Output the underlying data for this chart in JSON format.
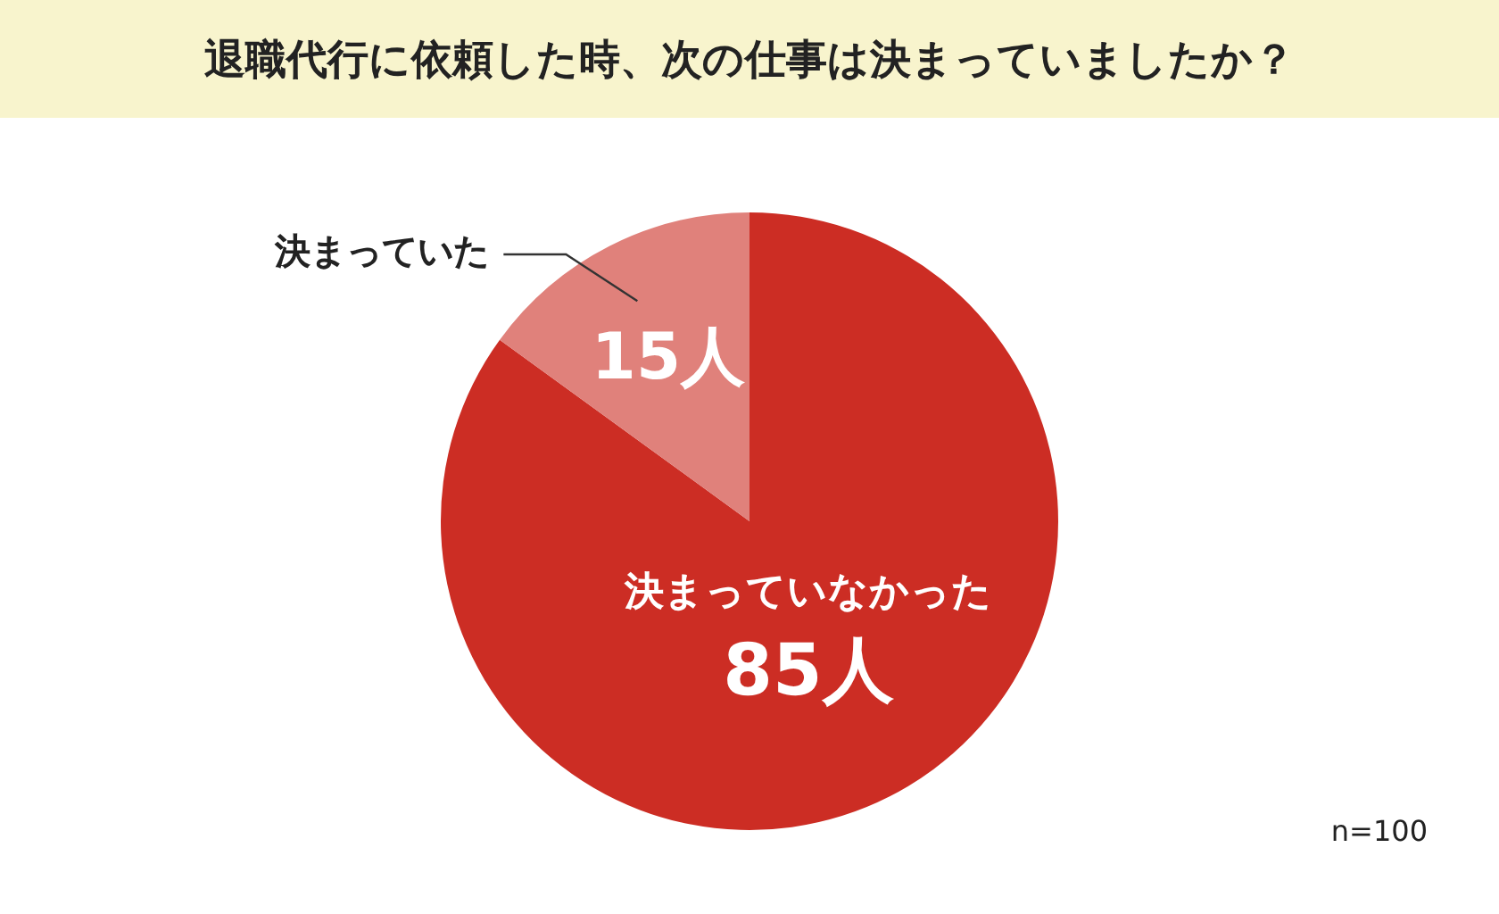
{
  "chart_data": {
    "type": "pie",
    "title": "退職代行に依頼した時、次の仕事は決まっていましたか？",
    "categories": [
      "決まっていなかった",
      "決まっていた"
    ],
    "values": [
      85,
      15
    ],
    "colors": [
      "#cc2d24",
      "#e0817b"
    ],
    "value_labels": [
      "85人",
      "15人"
    ],
    "annotations": [
      "n=100"
    ]
  }
}
